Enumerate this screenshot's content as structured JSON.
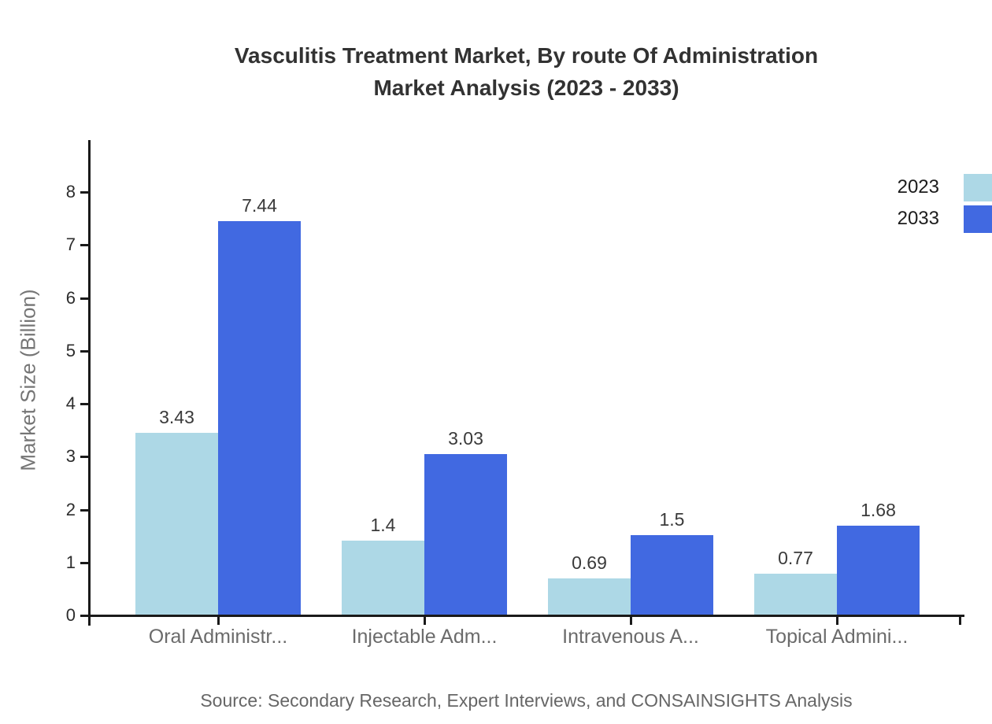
{
  "chart_data": {
    "type": "bar",
    "title_lines": [
      "Vasculitis Treatment Market, By route Of Administration",
      "Market Analysis (2023 - 2033)"
    ],
    "ylabel": "Market Size (Billion)",
    "xlabel": "",
    "categories": [
      "Oral Administr...",
      "Injectable Adm...",
      "Intravenous A...",
      "Topical Admini..."
    ],
    "series": [
      {
        "name": "2023",
        "color": "#add8e6",
        "values": [
          3.43,
          1.4,
          0.69,
          0.77
        ]
      },
      {
        "name": "2033",
        "color": "#4169e1",
        "values": [
          7.44,
          3.03,
          1.5,
          1.68
        ]
      }
    ],
    "y_ticks": [
      0,
      1,
      2,
      3,
      4,
      5,
      6,
      7,
      8
    ],
    "ylim": [
      0,
      8.9
    ],
    "grid": false,
    "legend_position": "top-right",
    "source": "Source: Secondary Research, Expert Interviews, and CONSAINSIGHTS Analysis"
  }
}
